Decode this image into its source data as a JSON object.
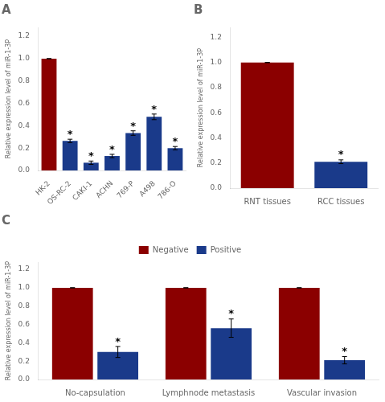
{
  "chart_data": [
    {
      "type": "bar",
      "title": "A",
      "categories": [
        "HK-2",
        "OS-RC-2",
        "CAKI-1",
        "ACHN",
        "769-P",
        "A498",
        "786-O"
      ],
      "values": [
        1.0,
        0.265,
        0.07,
        0.13,
        0.335,
        0.48,
        0.2
      ],
      "errors": [
        0.0,
        0.015,
        0.015,
        0.015,
        0.02,
        0.025,
        0.015
      ],
      "colors": [
        "#8B0000",
        "#1a3a8a",
        "#1a3a8a",
        "#1a3a8a",
        "#1a3a8a",
        "#1a3a8a",
        "#1a3a8a"
      ],
      "annotations": [
        {
          "text": "*",
          "x": "OS-RC-2",
          "y": 0.295
        },
        {
          "text": "*",
          "x": "CAKI-1",
          "y": 0.1
        },
        {
          "text": "*",
          "x": "ACHN",
          "y": 0.16
        },
        {
          "text": "*",
          "x": "769-P",
          "y": 0.37
        },
        {
          "text": "*",
          "x": "A498",
          "y": 0.52
        },
        {
          "text": "*",
          "x": "786-O",
          "y": 0.23
        }
      ],
      "ylabel": "Relative expression level of miR-1-3P",
      "ylim": [
        0,
        1.28
      ],
      "yticks": [
        {
          "value": 0.0,
          "label": "0.0"
        },
        0.2,
        0.4,
        0.6,
        0.8,
        {
          "value": 1.0,
          "label": "1.0"
        },
        1.2
      ],
      "grid": false
    },
    {
      "type": "bar",
      "title": "B",
      "categories": [
        "RNT tissues",
        "RCC tissues"
      ],
      "values": [
        1.0,
        0.21
      ],
      "errors": [
        0.0,
        0.015
      ],
      "colors": [
        "#8B0000",
        "#1a3a8a"
      ],
      "annotations": [
        {
          "text": "*",
          "x": "RCC tissues",
          "y": 0.245
        }
      ],
      "ylabel": "Relative expression level of miR-1-3P",
      "ylim": [
        0,
        1.28
      ],
      "yticks": [
        {
          "value": 0.0,
          "label": "0.0"
        },
        0.2,
        0.4,
        0.6,
        0.8,
        {
          "value": 1.0,
          "label": "1.0"
        },
        1.2
      ],
      "grid": false
    },
    {
      "type": "bar",
      "title": "C",
      "categories": [
        "No-capsulation",
        "Lymphnode metastasis",
        "Vascular invasion"
      ],
      "series": [
        {
          "name": "Negative",
          "color": "#8B0000",
          "values": [
            1.0,
            1.0,
            1.0
          ],
          "errors": [
            0.0,
            0.0,
            0.0
          ]
        },
        {
          "name": "Positive",
          "color": "#1a3a8a",
          "values": [
            0.3,
            0.56,
            0.21
          ],
          "errors": [
            0.06,
            0.1,
            0.04
          ]
        }
      ],
      "annotations": [
        {
          "text": "*",
          "x": "No-capsulation",
          "series": "Positive",
          "y": 0.38
        },
        {
          "text": "*",
          "x": "Lymphnode metastasis",
          "series": "Positive",
          "y": 0.68
        },
        {
          "text": "*",
          "x": "Vascular invasion",
          "series": "Positive",
          "y": 0.27
        }
      ],
      "ylabel": "Relative expression level of miR-1-3P",
      "ylim": [
        0,
        1.28
      ],
      "yticks": [
        {
          "value": 0.0,
          "label": "0.0"
        },
        0.2,
        0.4,
        0.6,
        0.8,
        {
          "value": 1.0,
          "label": "1.0"
        },
        1.2
      ],
      "legend": "top",
      "grid": false
    }
  ]
}
